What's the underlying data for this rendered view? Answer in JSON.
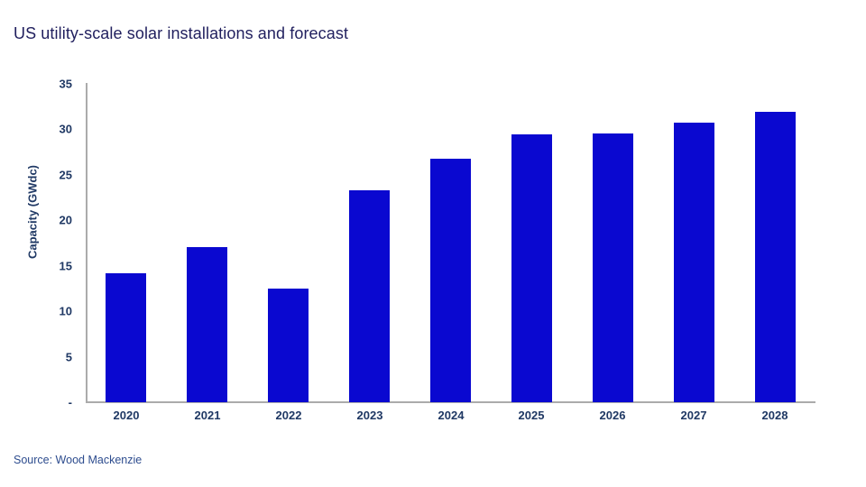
{
  "title": "US utility-scale solar installations and forecast",
  "source": "Source: Wood Mackenzie",
  "colors": {
    "bar": "#0A08D0",
    "title_text": "#201F5E",
    "axis_text": "#1F3864",
    "axis_line": "#ABABAB",
    "source_text": "#2D4C8E",
    "background": "#FFFFFF"
  },
  "chart_data": {
    "type": "bar",
    "categories": [
      "2020",
      "2021",
      "2022",
      "2023",
      "2024",
      "2025",
      "2026",
      "2027",
      "2028"
    ],
    "values": [
      14.2,
      17.1,
      12.5,
      23.3,
      26.8,
      29.4,
      29.5,
      30.7,
      31.9
    ],
    "title": "US utility-scale solar installations and forecast",
    "xlabel": "",
    "ylabel": "Capacity (GWdc)",
    "ylim": [
      0,
      35
    ],
    "ytick_interval": 5,
    "ytick_labels": [
      "-",
      "5",
      "10",
      "15",
      "20",
      "25",
      "30",
      "35"
    ],
    "grid": false,
    "legend": "none",
    "bar_color": "#0A08D0"
  }
}
